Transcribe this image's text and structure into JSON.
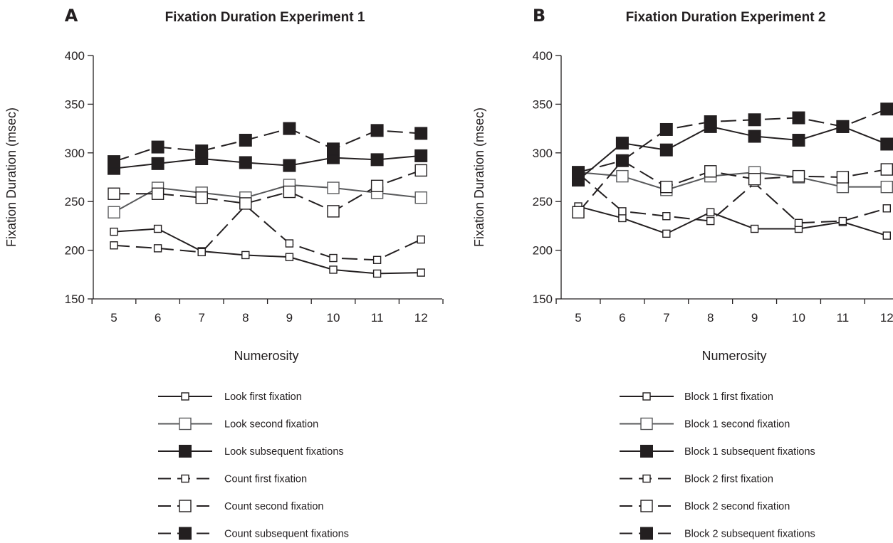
{
  "chart_data": [
    {
      "type": "line",
      "panel_letter": "A",
      "title": "Fixation Duration Experiment 1",
      "xlabel": "Numerosity",
      "ylabel": "Fixation Duration (msec)",
      "categories": [
        "5",
        "6",
        "7",
        "8",
        "9",
        "10",
        "11",
        "12"
      ],
      "yticks": [
        "150",
        "200",
        "250",
        "300",
        "350",
        "400"
      ],
      "ylim": [
        150,
        400
      ],
      "legend_position": "bottom",
      "series": [
        {
          "name": "Look first fixation",
          "values": [
            219,
            222,
            199,
            195,
            193,
            180,
            176,
            177
          ],
          "color": "#231f20",
          "dash": "solid",
          "marker": "small-open-square"
        },
        {
          "name": "Look second fixation",
          "values": [
            239,
            264,
            259,
            254,
            267,
            264,
            259,
            254
          ],
          "color": "#58595b",
          "dash": "solid",
          "marker": "large-open-square"
        },
        {
          "name": "Look subsequent fixations",
          "values": [
            284,
            289,
            294,
            290,
            287,
            295,
            293,
            297
          ],
          "color": "#231f20",
          "dash": "solid",
          "marker": "large-filled-square"
        },
        {
          "name": "Count first fixation",
          "values": [
            205,
            202,
            198,
            246,
            207,
            192,
            190,
            211
          ],
          "color": "#231f20",
          "dash": "dashed",
          "marker": "small-open-square"
        },
        {
          "name": "Count second fixation",
          "values": [
            258,
            258,
            254,
            248,
            260,
            240,
            266,
            282
          ],
          "color": "#231f20",
          "dash": "dashed",
          "marker": "large-open-square"
        },
        {
          "name": "Count subsequent fixations",
          "values": [
            291,
            306,
            302,
            313,
            325,
            304,
            323,
            320
          ],
          "color": "#231f20",
          "dash": "dashed",
          "marker": "large-filled-square"
        }
      ]
    },
    {
      "type": "line",
      "panel_letter": "B",
      "title": "Fixation Duration Experiment 2",
      "xlabel": "Numerosity",
      "ylabel": "Fixation Duration (msec)",
      "categories": [
        "5",
        "6",
        "7",
        "8",
        "9",
        "10",
        "11",
        "12"
      ],
      "yticks": [
        "150",
        "200",
        "250",
        "300",
        "350",
        "400"
      ],
      "ylim": [
        150,
        400
      ],
      "legend_position": "bottom",
      "series": [
        {
          "name": "Block 1 first fixation",
          "values": [
            245,
            233,
            217,
            239,
            222,
            222,
            229,
            215
          ],
          "color": "#231f20",
          "dash": "solid",
          "marker": "small-open-square"
        },
        {
          "name": "Block 1 second fixation",
          "values": [
            280,
            276,
            262,
            276,
            280,
            275,
            265,
            265
          ],
          "color": "#58595b",
          "dash": "solid",
          "marker": "large-open-square"
        },
        {
          "name": "Block 1 subsequent fixations",
          "values": [
            272,
            310,
            303,
            327,
            317,
            313,
            327,
            309
          ],
          "color": "#231f20",
          "dash": "solid",
          "marker": "large-filled-square"
        },
        {
          "name": "Block 2 first fixation",
          "values": [
            279,
            240,
            235,
            230,
            269,
            228,
            230,
            243
          ],
          "color": "#231f20",
          "dash": "dashed",
          "marker": "small-open-square"
        },
        {
          "name": "Block 2 second fixation",
          "values": [
            239,
            292,
            265,
            281,
            273,
            276,
            275,
            283
          ],
          "color": "#231f20",
          "dash": "dashed",
          "marker": "large-open-square"
        },
        {
          "name": "Block 2 subsequent fixations",
          "values": [
            280,
            292,
            324,
            332,
            334,
            336,
            327,
            345
          ],
          "color": "#231f20",
          "dash": "dashed",
          "marker": "large-filled-square"
        }
      ]
    }
  ]
}
